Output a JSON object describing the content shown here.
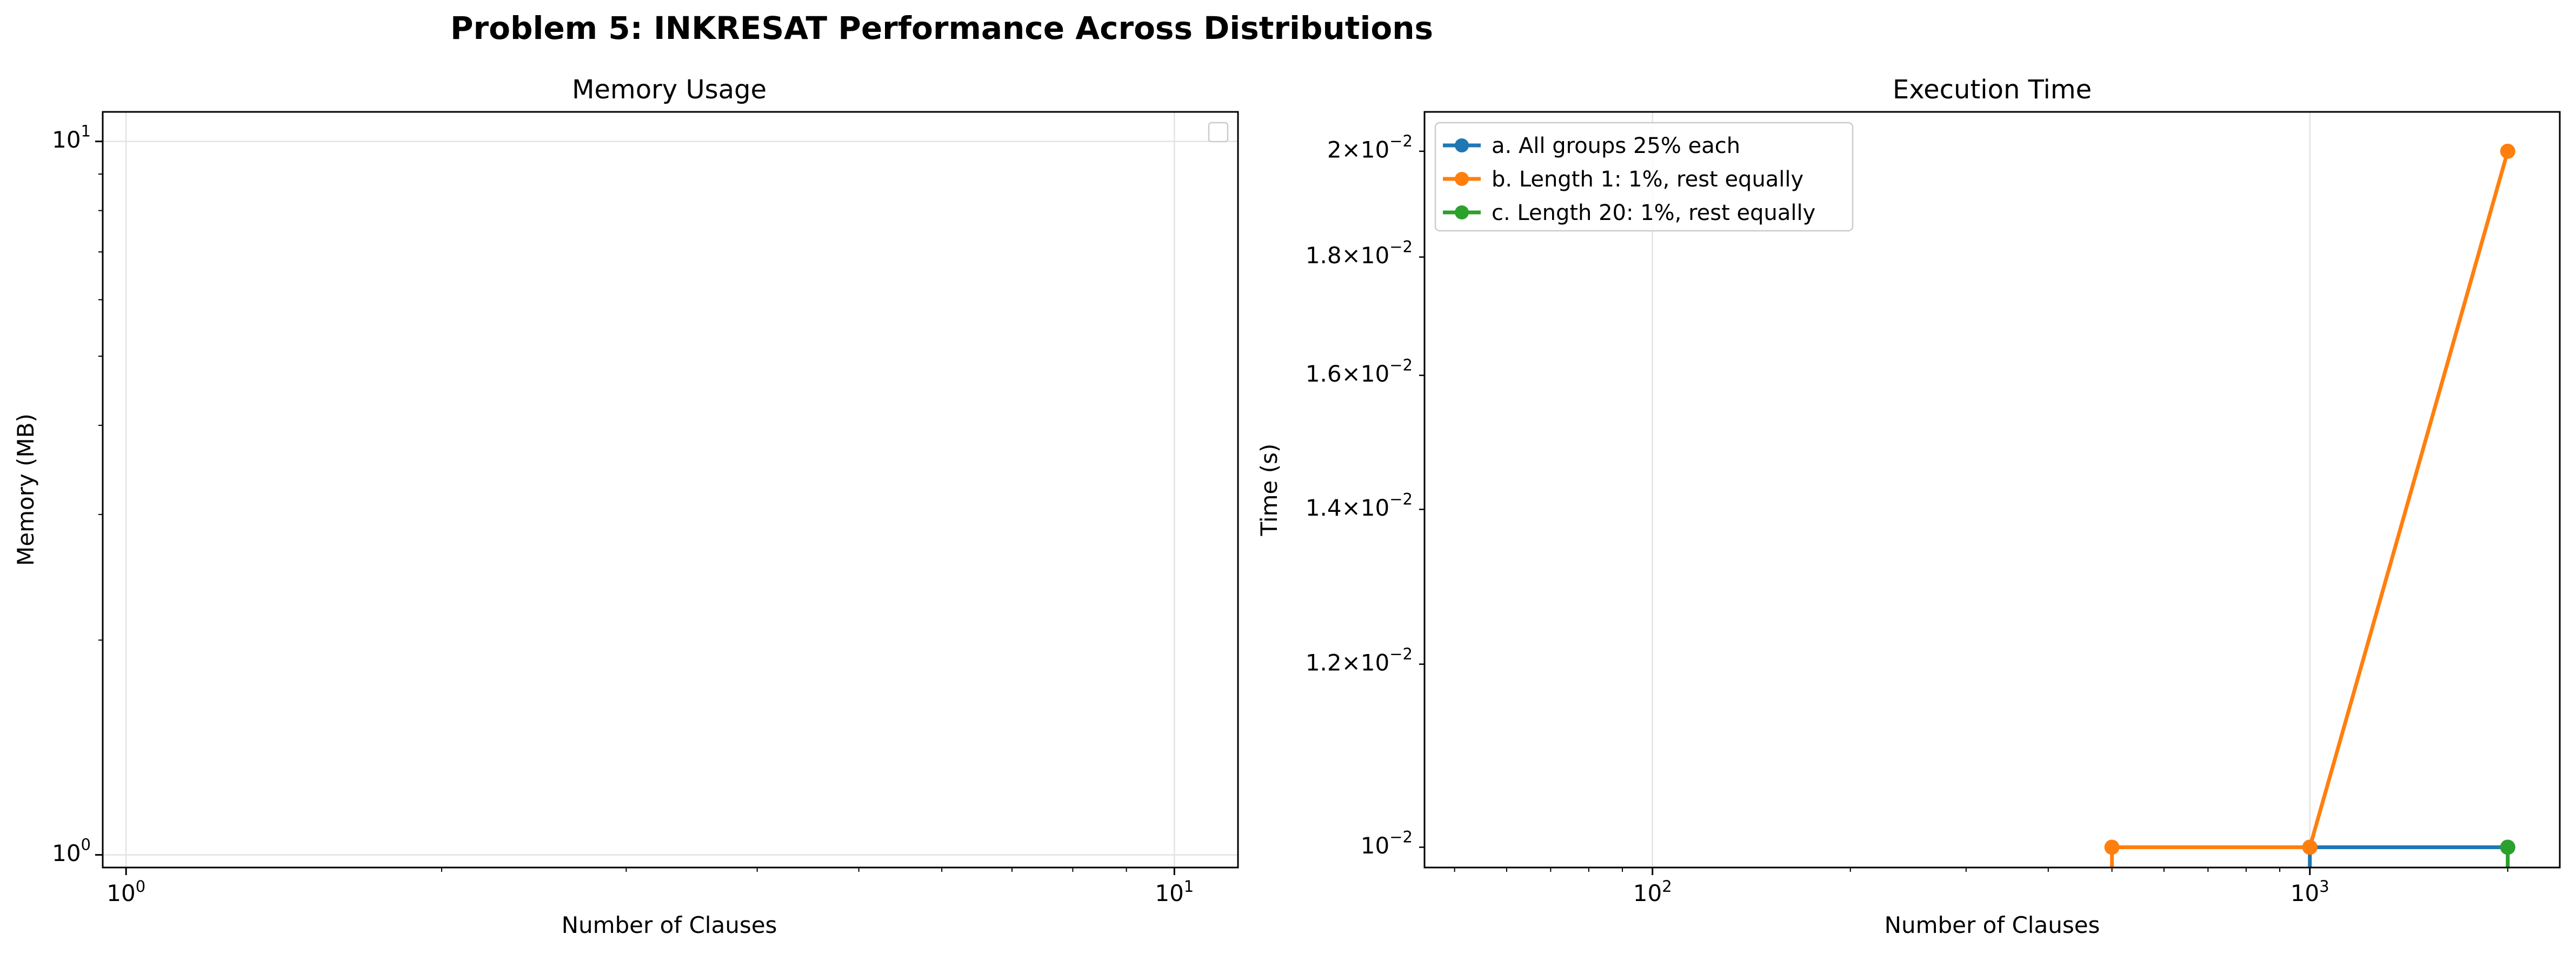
{
  "figure": {
    "title": "Problem 5: INKRESAT Performance Across Distributions"
  },
  "chart_data": [
    {
      "type": "line",
      "title": "Memory Usage",
      "xlabel": "Number of Clauses",
      "ylabel": "Memory (MB)",
      "xscale": "log",
      "yscale": "log",
      "xlim": [
        0.95,
        11.5
      ],
      "ylim": [
        0.96,
        11.0
      ],
      "x_ticks": [
        {
          "base": "10",
          "exp": "0",
          "value": 1
        },
        {
          "base": "10",
          "exp": "1",
          "value": 10
        }
      ],
      "y_ticks": [
        {
          "base": "10",
          "exp": "0",
          "value": 1
        },
        {
          "base": "10",
          "exp": "1",
          "value": 10
        }
      ],
      "grid": true,
      "legend": "top-right (empty)",
      "series": []
    },
    {
      "type": "line",
      "title": "Execution Time",
      "xlabel": "Number of Clauses",
      "ylabel": "Time (s)",
      "xscale": "log",
      "yscale": "log",
      "xlim": [
        45,
        2400
      ],
      "ylim": [
        0.0098,
        0.0208
      ],
      "x_ticks": [
        {
          "base": "10",
          "exp": "2",
          "value": 100
        },
        {
          "base": "10",
          "exp": "3",
          "value": 1000
        }
      ],
      "y_ticks": [
        {
          "mant": "1.2",
          "base": "10",
          "exp": "−2",
          "value": 0.012
        },
        {
          "mant": "1.4",
          "base": "10",
          "exp": "−2",
          "value": 0.014
        },
        {
          "mant": "1.6",
          "base": "10",
          "exp": "−2",
          "value": 0.016
        },
        {
          "mant": "1.8",
          "base": "10",
          "exp": "−2",
          "value": 0.018
        },
        {
          "mant": "2",
          "base": "10",
          "exp": "−2",
          "value": 0.02
        },
        {
          "base": "10",
          "exp": "−2",
          "value": 0.01
        }
      ],
      "grid": true,
      "legend": "top-left",
      "series": [
        {
          "name": "a. All groups 25% each",
          "color": "#1f77b4",
          "x": [
            1000,
            2000
          ],
          "y": [
            0.01,
            0.01
          ],
          "drop_from_x": 1000
        },
        {
          "name": "b. Length 1: 1%, rest equally",
          "color": "#ff7f0e",
          "x": [
            500,
            1000,
            2000
          ],
          "y": [
            0.01,
            0.01,
            0.02
          ],
          "drop_from_x": 500
        },
        {
          "name": "c. Length 20: 1%, rest equally",
          "color": "#2ca02c",
          "x": [
            2000
          ],
          "y": [
            0.01
          ],
          "drop_from_x": 2000
        }
      ]
    }
  ]
}
